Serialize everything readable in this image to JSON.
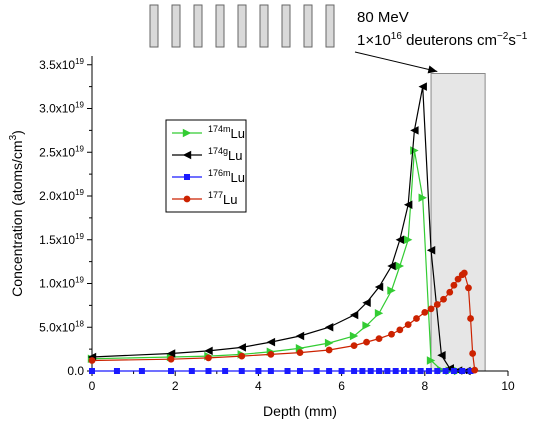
{
  "chart_data": {
    "type": "line",
    "xlabel": "Depth (mm)",
    "ylabel": "Concentration (atoms/cm",
    "ylabel_sup": "3",
    "ylabel_close": ")",
    "xlim": [
      0,
      10
    ],
    "ylim": [
      0,
      3.6e+19
    ],
    "x_ticks": [
      {
        "value": 0,
        "label": "0"
      },
      {
        "value": 2,
        "label": "2"
      },
      {
        "value": 4,
        "label": "4"
      },
      {
        "value": 6,
        "label": "6"
      },
      {
        "value": 8,
        "label": "8"
      },
      {
        "value": 10,
        "label": "10"
      }
    ],
    "y_ticks": [
      {
        "value": 0,
        "label": "0.0"
      },
      {
        "value": 5e+18,
        "label": "5.0x10",
        "exp": "18"
      },
      {
        "value": 1e+19,
        "label": "1.0x10",
        "exp": "19"
      },
      {
        "value": 1.5e+19,
        "label": "1.5x10",
        "exp": "19"
      },
      {
        "value": 2e+19,
        "label": "2.0x10",
        "exp": "19"
      },
      {
        "value": 2.5e+19,
        "label": "2.5x10",
        "exp": "19"
      },
      {
        "value": 3e+19,
        "label": "3.0x10",
        "exp": "19"
      },
      {
        "value": 3.5e+19,
        "label": "3.5x10",
        "exp": "19"
      }
    ],
    "grid": false,
    "legend_position": "upper-left",
    "target_region": {
      "x_start": 8.15,
      "x_end": 9.45,
      "y_top": 3.4e+19
    },
    "annotation": {
      "line1": "80 MeV",
      "line2_prefix": "1×10",
      "line2_exp": "16",
      "line2_mid": " deuterons cm",
      "line2_exp2": "−2",
      "line2_suffix": "s",
      "line2_exp3": "−1",
      "arrow_target_x": 8.3,
      "arrow_target_y": 3.4e+19
    },
    "series": [
      {
        "name_sup": "174m",
        "name_base": "Lu",
        "color": "#33cc33",
        "marker": "triangle-right",
        "x": [
          0.0,
          1.9,
          2.8,
          3.6,
          4.3,
          5.0,
          5.7,
          6.3,
          6.6,
          6.9,
          7.2,
          7.4,
          7.6,
          7.75,
          7.95,
          8.15,
          8.4,
          8.6,
          8.8
        ],
        "y": [
          1.4e+18,
          1.6e+18,
          1.7e+18,
          1.9e+18,
          2.2e+18,
          2.6e+18,
          3.2e+18,
          4e+18,
          5.2e+18,
          6.6e+18,
          9.2e+18,
          1.2e+19,
          1.5e+19,
          2.52e+19,
          1.98e+19,
          1.2e+18,
          1e+17,
          3e+16,
          0
        ]
      },
      {
        "name_sup": "174g",
        "name_base": "Lu",
        "color": "#000000",
        "marker": "triangle-left",
        "x": [
          0.0,
          1.9,
          2.8,
          3.6,
          4.3,
          5.0,
          5.7,
          6.3,
          6.6,
          6.9,
          7.2,
          7.4,
          7.6,
          7.75,
          7.95,
          8.15,
          8.4,
          8.6,
          8.8,
          9.0
        ],
        "y": [
          1.6e+18,
          2e+18,
          2.3e+18,
          2.7e+18,
          3.3e+18,
          4e+18,
          5e+18,
          6.4e+18,
          7.8e+18,
          9.6e+18,
          1.2e+19,
          1.5e+19,
          1.9e+19,
          2.75e+19,
          3.25e+19,
          1.38e+19,
          1.8e+18,
          3e+17,
          5e+16,
          0
        ]
      },
      {
        "name_sup": "176m",
        "name_base": "Lu",
        "color": "#1a1aff",
        "marker": "square",
        "x": [
          0.0,
          0.6,
          1.2,
          1.9,
          2.4,
          2.8,
          3.2,
          3.6,
          4.0,
          4.3,
          4.7,
          5.0,
          5.4,
          5.7,
          6.0,
          6.3,
          6.5,
          6.7,
          6.9,
          7.1,
          7.3,
          7.5,
          7.7,
          7.9,
          8.1,
          8.3,
          8.5,
          8.7,
          8.9,
          9.1
        ],
        "y": [
          0,
          0,
          0,
          0,
          0,
          0,
          0,
          0,
          0,
          0,
          0,
          0,
          0,
          0,
          0,
          0,
          0,
          0,
          0,
          0,
          0,
          0,
          0,
          0,
          0,
          0,
          0,
          0,
          0,
          0
        ]
      },
      {
        "name_sup": "177",
        "name_base": "Lu",
        "color": "#cc2200",
        "marker": "circle",
        "x": [
          0.0,
          1.9,
          2.8,
          3.6,
          4.3,
          5.0,
          5.7,
          6.3,
          6.6,
          6.9,
          7.2,
          7.4,
          7.6,
          7.8,
          8.0,
          8.15,
          8.3,
          8.45,
          8.6,
          8.7,
          8.8,
          8.9,
          8.95,
          9.05,
          9.1,
          9.15,
          9.2
        ],
        "y": [
          1.2e+18,
          1.35e+18,
          1.5e+18,
          1.7e+18,
          1.9e+18,
          2.1e+18,
          2.4e+18,
          2.9e+18,
          3.3e+18,
          3.7e+18,
          4.2e+18,
          4.7e+18,
          5.3e+18,
          6e+18,
          6.7e+18,
          7.1e+18,
          7.6e+18,
          8.2e+18,
          9e+18,
          9.8e+18,
          1.05e+19,
          1.1e+19,
          1.12e+19,
          9.5e+18,
          6e+18,
          2e+18,
          1e+17
        ]
      }
    ]
  }
}
